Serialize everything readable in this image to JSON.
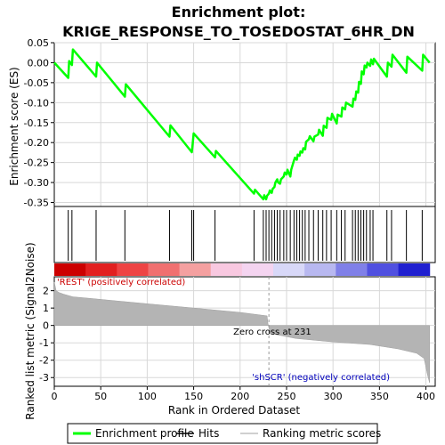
{
  "chart_data": [
    {
      "type": "line",
      "title": "Enrichment plot: KRIGE_RESPONSE_TO_TOSEDOSTAT_6HR_DN",
      "ylabel": "Enrichment score (ES)",
      "ylim": [
        -0.36,
        0.05
      ],
      "yticks": [
        0.05,
        0.0,
        -0.05,
        -0.1,
        -0.15,
        -0.2,
        -0.25,
        -0.3,
        -0.35
      ],
      "ytick_labels": [
        "0.05",
        "0.00",
        "-0.05",
        "-0.10",
        "-0.15",
        "-0.20",
        "-0.25",
        "-0.30",
        "-0.35"
      ],
      "xlim": [
        0,
        410
      ],
      "grid": true,
      "series": [
        {
          "name": "Enrichment profile",
          "color": "#00ff00",
          "x": [
            0,
            15,
            16,
            19,
            20,
            45,
            46,
            76,
            77,
            124,
            125,
            148,
            149,
            150,
            173,
            174,
            215,
            216,
            225,
            226,
            228,
            229,
            231,
            232,
            234,
            235,
            237,
            238,
            240,
            241,
            243,
            244,
            247,
            248,
            250,
            251,
            254,
            255,
            258,
            259,
            261,
            262,
            264,
            265,
            267,
            268,
            270,
            271,
            274,
            275,
            279,
            280,
            284,
            285,
            289,
            290,
            293,
            294,
            298,
            299,
            304,
            305,
            309,
            310,
            313,
            314,
            321,
            322,
            324,
            325,
            327,
            328,
            330,
            331,
            333,
            334,
            336,
            337,
            340,
            341,
            343,
            344,
            358,
            359,
            363,
            364,
            379,
            380,
            396,
            397,
            404
          ],
          "y": [
            0.0,
            -0.038,
            0.004,
            -0.006,
            0.033,
            -0.035,
            0.0,
            -0.085,
            -0.054,
            -0.185,
            -0.157,
            -0.224,
            -0.203,
            -0.177,
            -0.237,
            -0.221,
            -0.328,
            -0.318,
            -0.342,
            -0.332,
            -0.342,
            -0.333,
            -0.328,
            -0.32,
            -0.326,
            -0.316,
            -0.311,
            -0.3,
            -0.292,
            -0.3,
            -0.303,
            -0.292,
            -0.285,
            -0.275,
            -0.28,
            -0.268,
            -0.285,
            -0.268,
            -0.245,
            -0.238,
            -0.243,
            -0.23,
            -0.233,
            -0.222,
            -0.225,
            -0.214,
            -0.217,
            -0.198,
            -0.192,
            -0.184,
            -0.197,
            -0.185,
            -0.18,
            -0.168,
            -0.183,
            -0.158,
            -0.163,
            -0.138,
            -0.143,
            -0.128,
            -0.152,
            -0.13,
            -0.135,
            -0.112,
            -0.117,
            -0.1,
            -0.11,
            -0.09,
            -0.093,
            -0.072,
            -0.075,
            -0.048,
            -0.053,
            -0.022,
            -0.029,
            -0.007,
            -0.012,
            0.0,
            -0.008,
            0.008,
            -0.004,
            0.01,
            -0.035,
            0.0,
            -0.01,
            0.02,
            -0.025,
            0.015,
            -0.02,
            0.02,
            0.0
          ]
        }
      ],
      "legend": {
        "placement": "bottom",
        "entries": [
          {
            "label": "Enrichment profile",
            "color": "#00ff00",
            "kind": "line"
          },
          {
            "label": "Hits",
            "color": "#000000",
            "kind": "line"
          },
          {
            "label": "Ranking metric scores",
            "color": "#c0c0c0",
            "kind": "line"
          }
        ]
      }
    },
    {
      "type": "bar",
      "title": "",
      "xlabel": "Rank in Ordered Dataset",
      "ylabel": "Ranked list metric (Signal2Noise)",
      "ylim": [
        -3.5,
        2.8
      ],
      "yticks": [
        2,
        1,
        0,
        -1,
        -2,
        -3
      ],
      "ytick_labels": [
        "2",
        "1",
        "0",
        "-1",
        "-2",
        "-3"
      ],
      "xlim": [
        0,
        410
      ],
      "xticks": [
        0,
        50,
        100,
        150,
        200,
        250,
        300,
        350,
        400
      ],
      "xtick_labels": [
        "0",
        "50",
        "100",
        "150",
        "200",
        "250",
        "300",
        "350",
        "400"
      ],
      "grid": true,
      "hits": [
        15,
        19,
        45,
        76,
        124,
        148,
        150,
        173,
        215,
        225,
        228,
        231,
        234,
        237,
        240,
        243,
        247,
        250,
        254,
        258,
        261,
        264,
        267,
        270,
        274,
        279,
        284,
        289,
        293,
        298,
        304,
        309,
        313,
        321,
        324,
        327,
        330,
        333,
        336,
        340,
        343,
        358,
        363,
        379,
        396
      ],
      "metric_profile": {
        "x": [
          0,
          2,
          5,
          10,
          20,
          40,
          60,
          100,
          150,
          200,
          229,
          230,
          231,
          232,
          260,
          300,
          340,
          370,
          390,
          398,
          402,
          404
        ],
        "y": [
          2.5,
          2.0,
          1.9,
          1.8,
          1.65,
          1.55,
          1.45,
          1.25,
          1.0,
          0.75,
          0.55,
          0.1,
          -0.1,
          -0.45,
          -0.75,
          -0.95,
          -1.1,
          -1.35,
          -1.6,
          -1.9,
          -2.9,
          -3.3
        ]
      },
      "annotations": {
        "positive": "'REST' (positively correlated)",
        "zero_cross": "Zero cross at 231",
        "negative": "'shSCR' (negatively correlated)"
      },
      "heat_colors": [
        "#cc0000",
        "#e22020",
        "#ee4444",
        "#f07070",
        "#f4a0a0",
        "#f8c8e0",
        "#f4d4f0",
        "#d8d8f8",
        "#b8b8f0",
        "#8080e8",
        "#5050e0",
        "#2020d0"
      ]
    }
  ]
}
